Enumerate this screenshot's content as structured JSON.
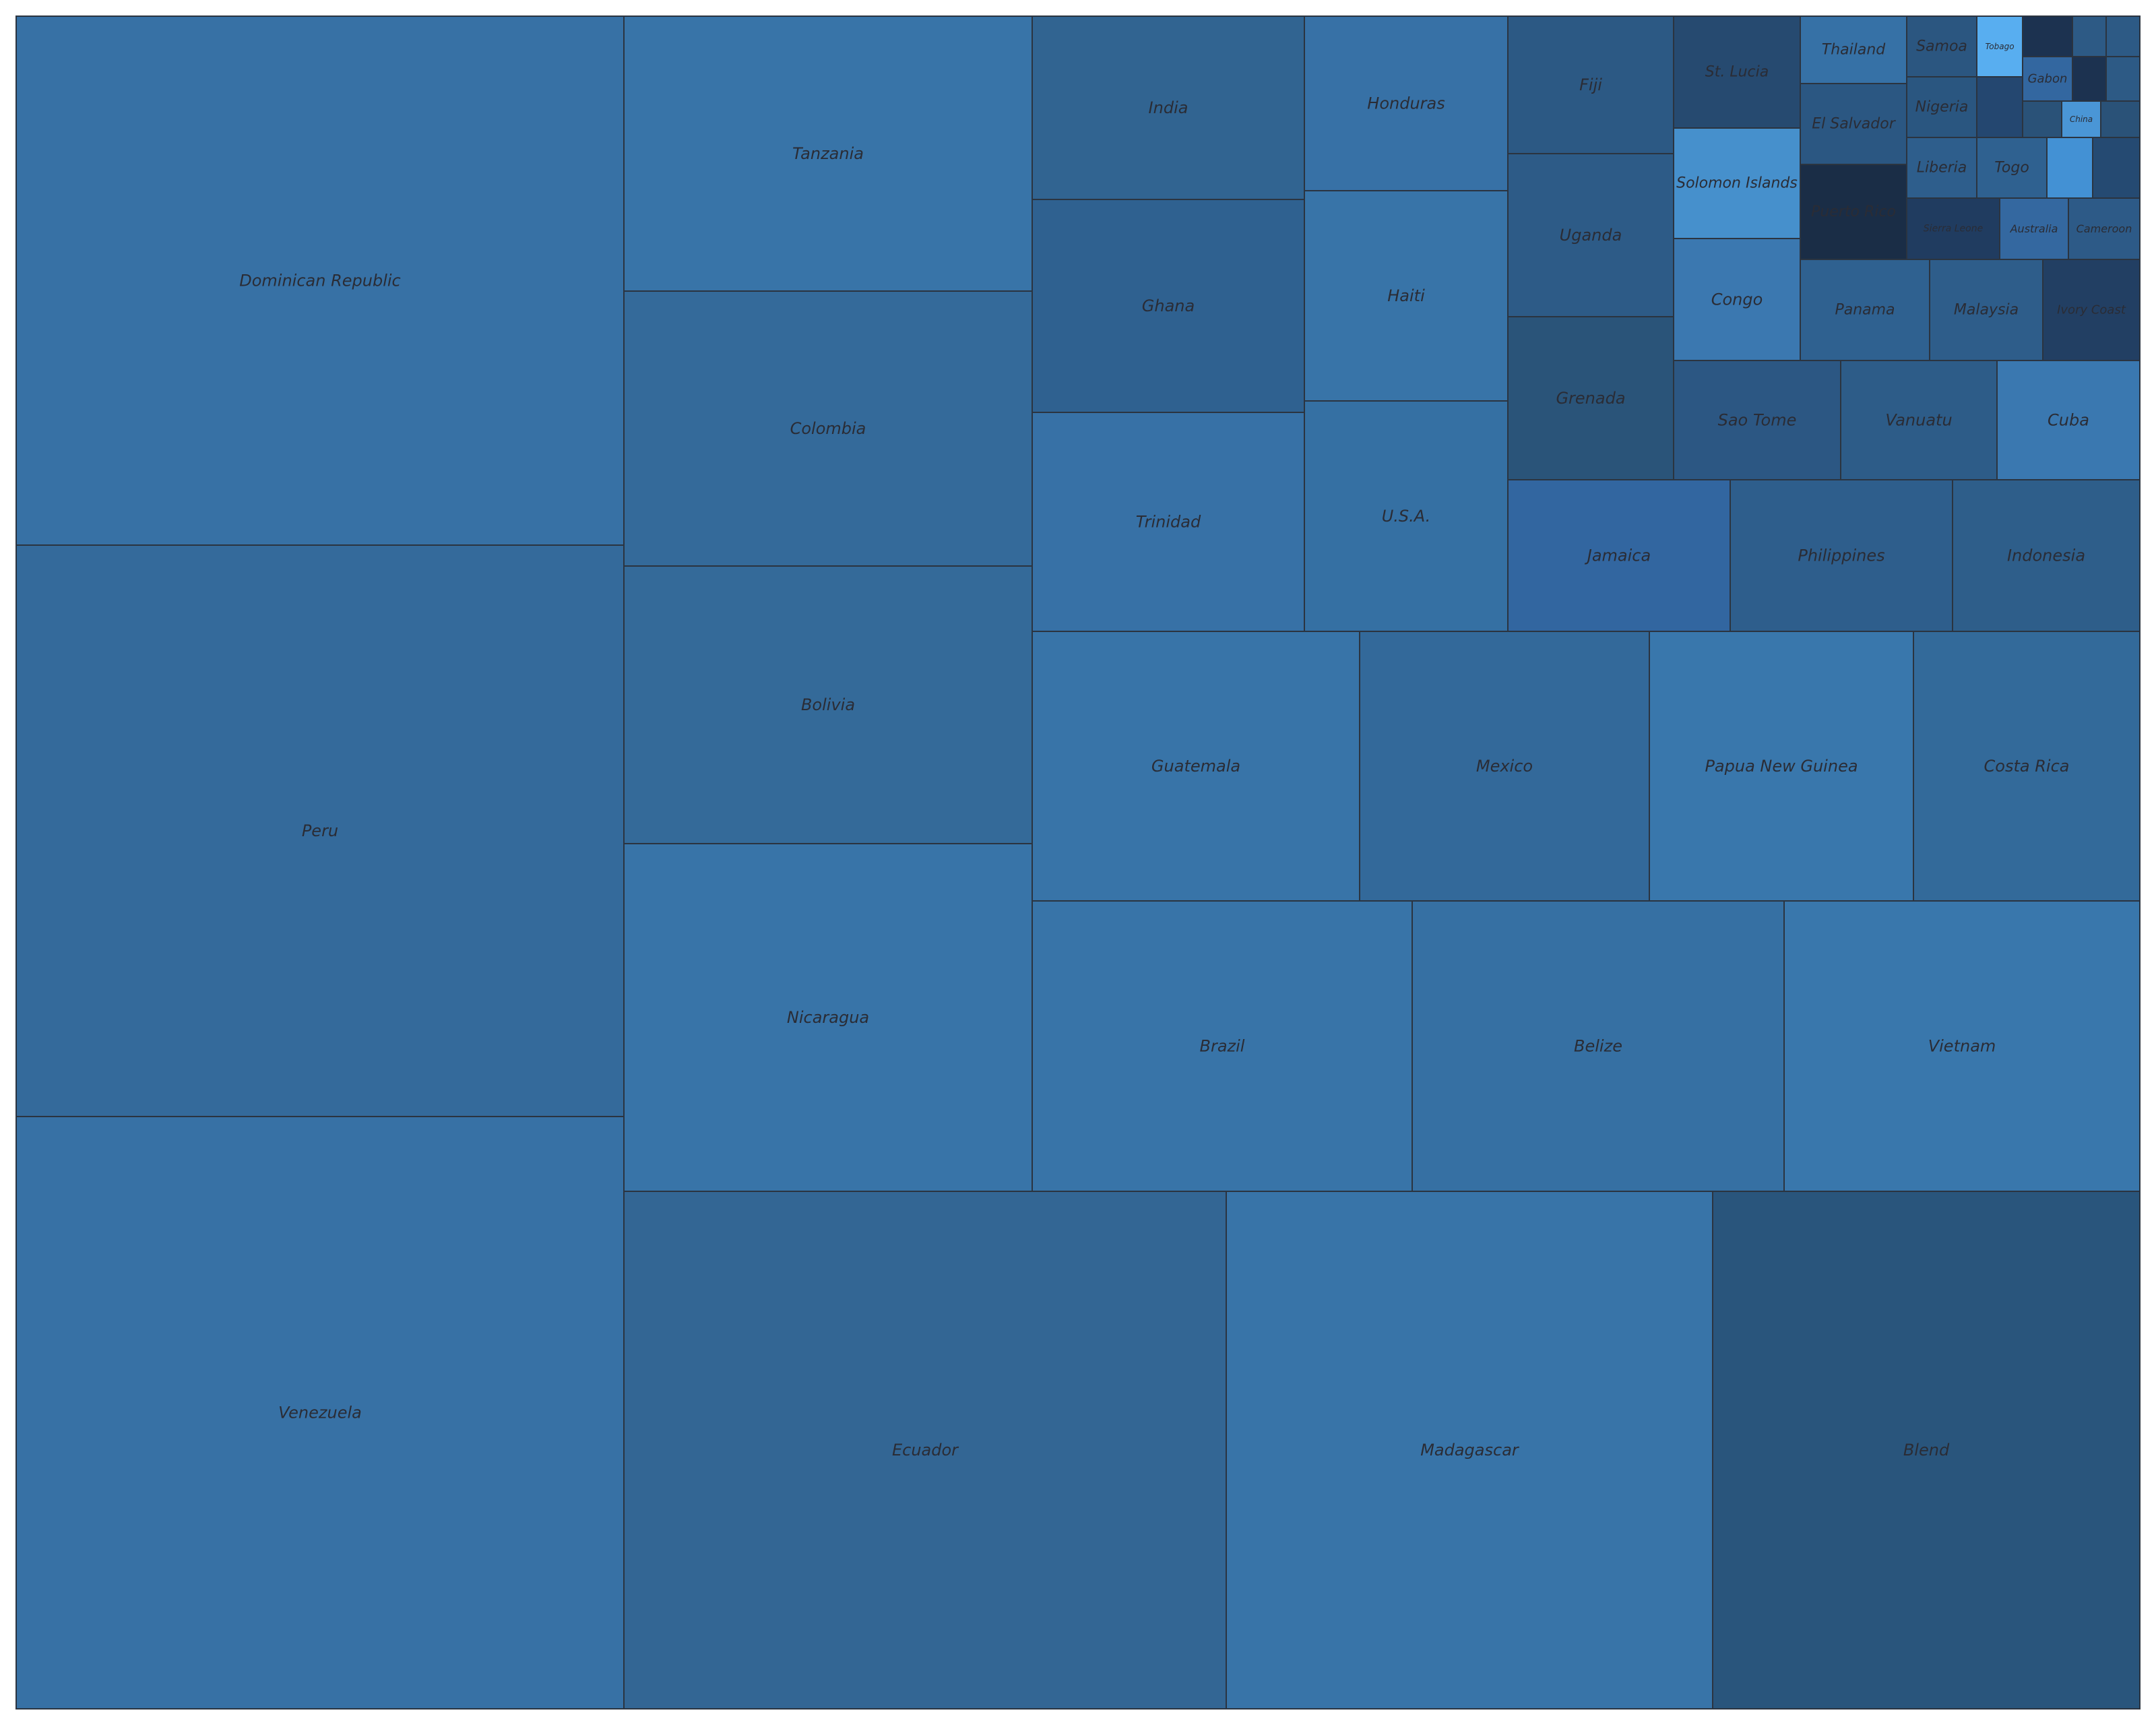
{
  "chart_data": {
    "type": "treemap",
    "legend": "none",
    "tiles": [
      {
        "label": "Dominican Republic",
        "color": "#3771a5"
      },
      {
        "label": "Peru",
        "color": "#346a9b"
      },
      {
        "label": "Venezuela",
        "color": "#3771a5"
      },
      {
        "label": "Tanzania",
        "color": "#3874a8"
      },
      {
        "label": "Colombia",
        "color": "#346a9a"
      },
      {
        "label": "Bolivia",
        "color": "#346a99"
      },
      {
        "label": "Nicaragua",
        "color": "#3874a8"
      },
      {
        "label": "India",
        "color": "#316491"
      },
      {
        "label": "Ghana",
        "color": "#2f6190"
      },
      {
        "label": "Trinidad",
        "color": "#3771a6"
      },
      {
        "label": "Honduras",
        "color": "#3771a6"
      },
      {
        "label": "Haiti",
        "color": "#3874a8"
      },
      {
        "label": "U.S.A.",
        "color": "#3570a3"
      },
      {
        "label": "Fiji",
        "color": "#2c5984"
      },
      {
        "label": "Uganda",
        "color": "#2d5b87"
      },
      {
        "label": "Grenada",
        "color": "#2a5479"
      },
      {
        "label": "St. Lucia",
        "color": "#264a70"
      },
      {
        "label": "Solomon Islands",
        "color": "#4690cc"
      },
      {
        "label": "Congo",
        "color": "#3b78b0"
      },
      {
        "label": "Thailand",
        "color": "#3671a6"
      },
      {
        "label": "El Salvador",
        "color": "#2b5782"
      },
      {
        "label": "Puerto Rico",
        "color": "#1a2d46"
      },
      {
        "label": "Samoa",
        "color": "#2b5680"
      },
      {
        "label": "Tobago",
        "color": "#58aef0"
      },
      {
        "label": "",
        "color": "#1c3250"
      },
      {
        "label": "",
        "color": "#2d5a85"
      },
      {
        "label": "",
        "color": "#2d5a85"
      },
      {
        "label": "Nigeria",
        "color": "#2a5680"
      },
      {
        "label": "",
        "color": "#244770"
      },
      {
        "label": "Gabon",
        "color": "#3367a0"
      },
      {
        "label": "",
        "color": "#1c3250"
      },
      {
        "label": "",
        "color": "#2d5a85"
      },
      {
        "label": "",
        "color": "#2a5278"
      },
      {
        "label": "China",
        "color": "#4a96d6"
      },
      {
        "label": "",
        "color": "#2a5278"
      },
      {
        "label": "Liberia",
        "color": "#2e5e8c"
      },
      {
        "label": "Togo",
        "color": "#2f6190"
      },
      {
        "label": "",
        "color": "#4391d4"
      },
      {
        "label": "",
        "color": "#254a72"
      },
      {
        "label": "Sierra Leone",
        "color": "#203c60"
      },
      {
        "label": "Australia",
        "color": "#3468a0"
      },
      {
        "label": "Cameroon",
        "color": "#2d5a87"
      },
      {
        "label": "Panama",
        "color": "#2f6190"
      },
      {
        "label": "Malaysia",
        "color": "#2e5d8a"
      },
      {
        "label": "Ivory Coast",
        "color": "#223f63"
      },
      {
        "label": "Sao Tome",
        "color": "#2c5783"
      },
      {
        "label": "Vanuatu",
        "color": "#2d5c88"
      },
      {
        "label": "Cuba",
        "color": "#3a78b0"
      },
      {
        "label": "Jamaica",
        "color": "#3266a0"
      },
      {
        "label": "Philippines",
        "color": "#2e5e8c"
      },
      {
        "label": "Indonesia",
        "color": "#2e5e8a"
      },
      {
        "label": "Guatemala",
        "color": "#3874a8"
      },
      {
        "label": "Mexico",
        "color": "#33699a"
      },
      {
        "label": "Papua New Guinea",
        "color": "#3977ac"
      },
      {
        "label": "Costa Rica",
        "color": "#336a9a"
      },
      {
        "label": "Brazil",
        "color": "#3874a8"
      },
      {
        "label": "Belize",
        "color": "#3670a3"
      },
      {
        "label": "Vietnam",
        "color": "#3977ac"
      },
      {
        "label": "Ecuador",
        "color": "#336694"
      },
      {
        "label": "Madagascar",
        "color": "#3874a8"
      },
      {
        "label": "Blend",
        "color": "#29557c"
      }
    ]
  }
}
